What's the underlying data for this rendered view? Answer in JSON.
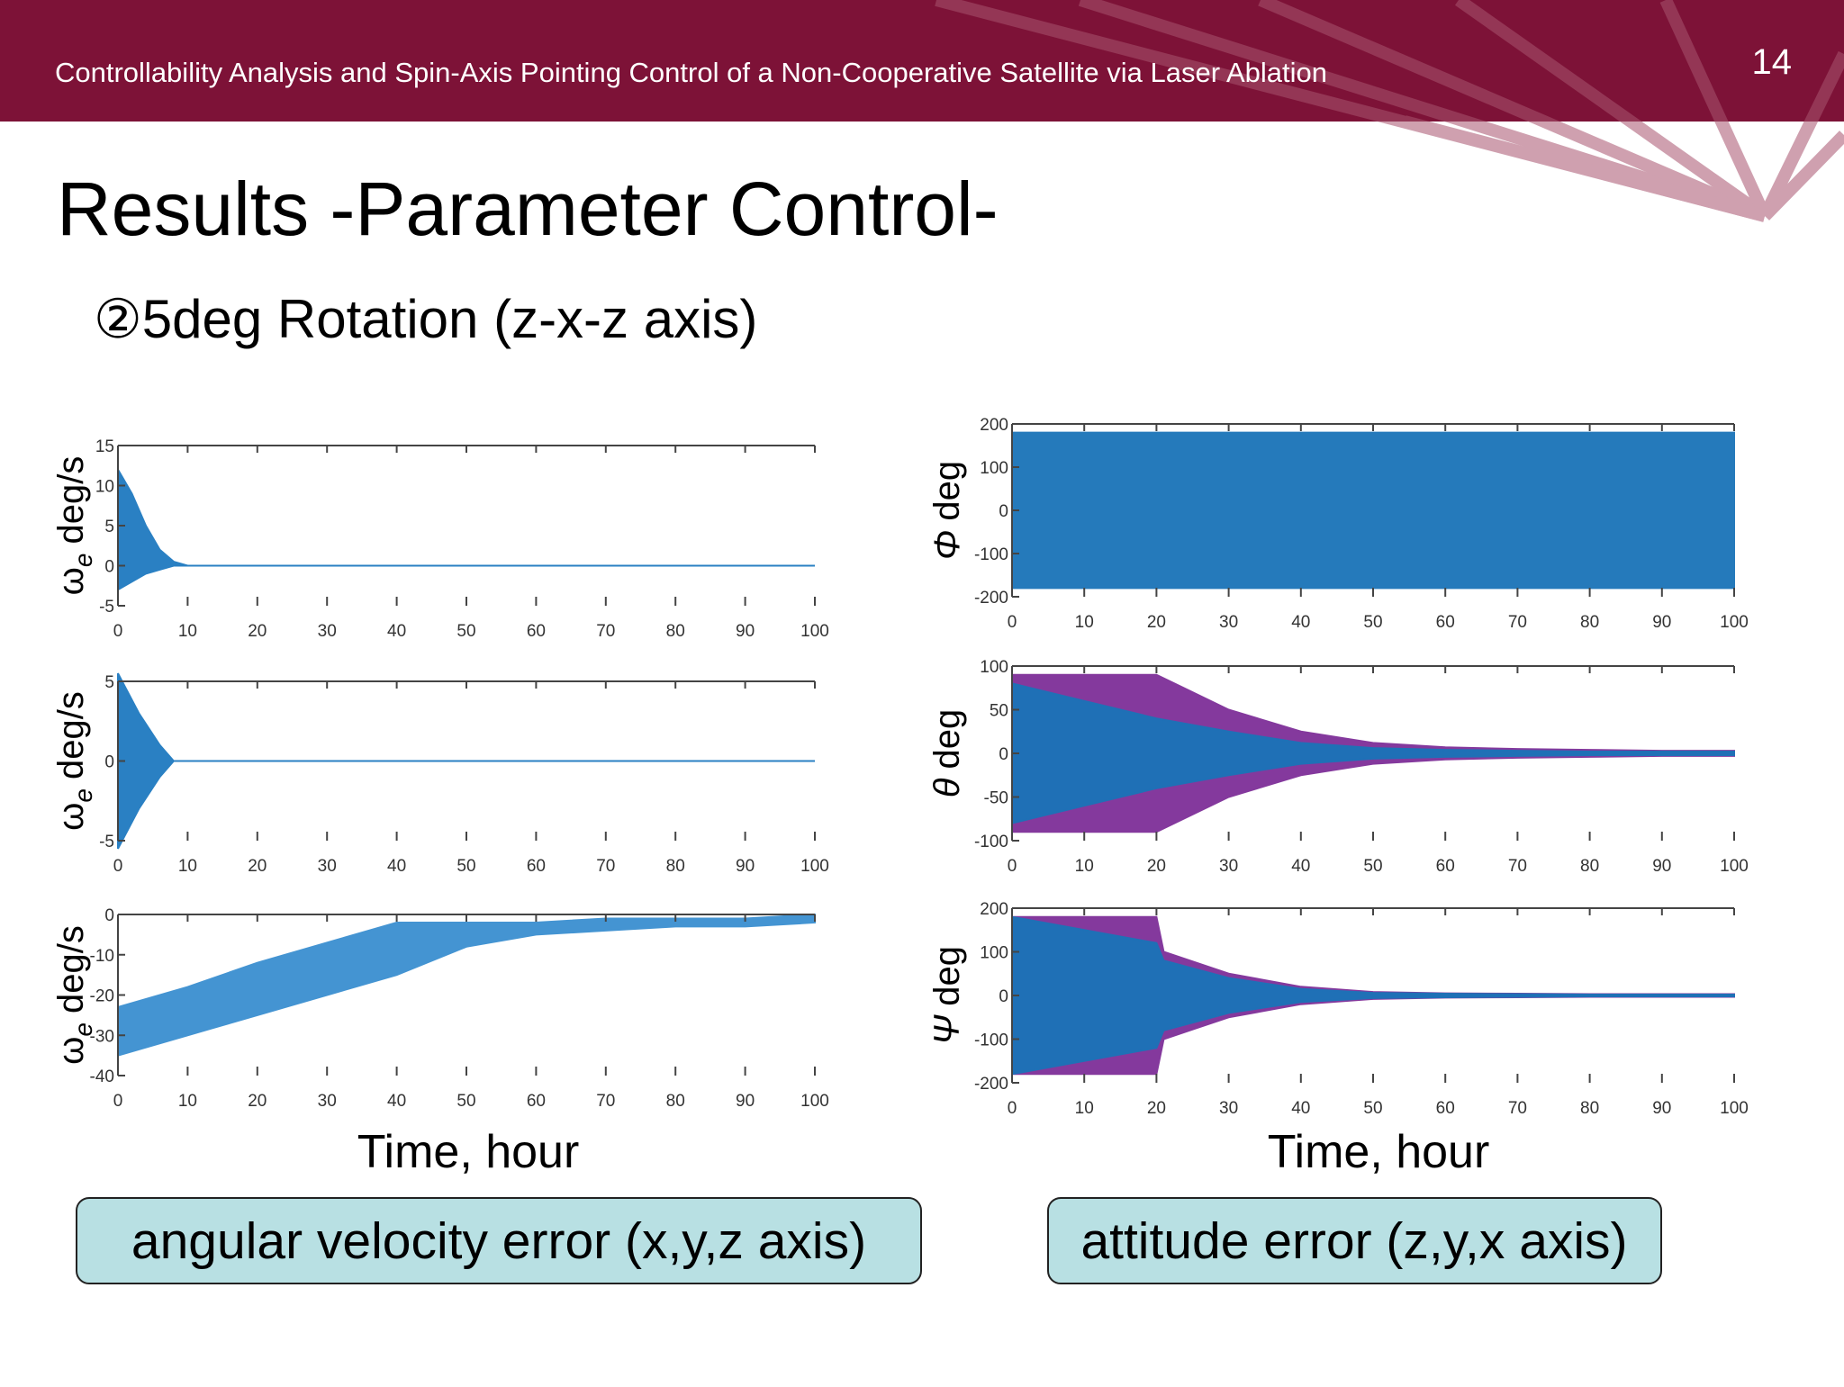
{
  "header": {
    "title": "Controllability Analysis and Spin-Axis Pointing Control of a Non-Cooperative Satellite via Laser Ablation",
    "page": "14"
  },
  "title": "Results -Parameter Control-",
  "subtitle": "②5deg Rotation (z-x-z axis)",
  "captions": {
    "left_xlabel": "Time, hour",
    "right_xlabel": "Time, hour",
    "left_box": "angular velocity error (x,y,z axis)",
    "right_box": "attitude error (z,y,x axis)"
  },
  "chart_data": [
    {
      "type": "band",
      "ylabel": {
        "symbol": "ω",
        "subscript": "e",
        "unit": "deg/s"
      },
      "x": [
        0,
        2,
        4,
        6,
        8,
        10,
        100
      ],
      "series": [
        {
          "color": "#1f7ac0",
          "upper": [
            12,
            9,
            5,
            2,
            0.5,
            0,
            0
          ],
          "lower": [
            -3,
            -2,
            -1,
            -0.5,
            0,
            0,
            0
          ]
        }
      ],
      "xlim": [
        0,
        100
      ],
      "xticks": [
        0,
        10,
        20,
        30,
        40,
        50,
        60,
        70,
        80,
        90,
        100
      ],
      "ylim": [
        -5,
        15
      ],
      "yticks": [
        -5,
        0,
        5,
        10,
        15
      ]
    },
    {
      "type": "band",
      "ylabel": {
        "symbol": "ω",
        "subscript": "e",
        "unit": "deg/s"
      },
      "x": [
        0,
        3,
        6,
        8,
        100
      ],
      "series": [
        {
          "color": "#1f7ac0",
          "upper": [
            5.5,
            3,
            1,
            0,
            0
          ],
          "lower": [
            -5.5,
            -3,
            -1,
            0,
            0
          ]
        }
      ],
      "xlim": [
        0,
        100
      ],
      "xticks": [
        0,
        10,
        20,
        30,
        40,
        50,
        60,
        70,
        80,
        90,
        100
      ],
      "ylim": [
        -5,
        5
      ],
      "yticks": [
        -5,
        0,
        5
      ]
    },
    {
      "type": "band",
      "ylabel": {
        "symbol": "ω",
        "subscript": "e",
        "unit": "deg/s"
      },
      "x": [
        0,
        10,
        20,
        30,
        40,
        50,
        60,
        70,
        80,
        90,
        100
      ],
      "series": [
        {
          "color": "#3a8fd0",
          "upper": [
            -23,
            -18,
            -12,
            -7,
            -2,
            -2,
            -2,
            -1,
            -1,
            -1,
            0
          ],
          "lower": [
            -35,
            -30,
            -25,
            -20,
            -15,
            -8,
            -5,
            -4,
            -3,
            -3,
            -2
          ]
        }
      ],
      "xlim": [
        0,
        100
      ],
      "xticks": [
        0,
        10,
        20,
        30,
        40,
        50,
        60,
        70,
        80,
        90,
        100
      ],
      "ylim": [
        -40,
        0
      ],
      "yticks": [
        -40,
        -30,
        -20,
        -10,
        0
      ]
    },
    {
      "type": "band",
      "ylabel": {
        "symbol": "Φ",
        "unit": "deg"
      },
      "x": [
        0,
        100
      ],
      "series": [
        {
          "color": "#1a73b8",
          "upper": [
            180,
            180
          ],
          "lower": [
            -180,
            -180
          ]
        }
      ],
      "xlim": [
        0,
        100
      ],
      "xticks": [
        0,
        10,
        20,
        30,
        40,
        50,
        60,
        70,
        80,
        90,
        100
      ],
      "ylim": [
        -200,
        200
      ],
      "yticks": [
        -200,
        -100,
        0,
        100,
        200
      ]
    },
    {
      "type": "band",
      "ylabel": {
        "symbol": "θ",
        "unit": "deg"
      },
      "x": [
        0,
        10,
        20,
        30,
        40,
        50,
        60,
        70,
        80,
        90,
        100
      ],
      "series": [
        {
          "color": "#7e2f98",
          "upper": [
            90,
            90,
            90,
            50,
            25,
            12,
            7,
            5,
            4,
            3,
            3
          ],
          "lower": [
            -90,
            -90,
            -90,
            -50,
            -25,
            -12,
            -7,
            -5,
            -4,
            -3,
            -3
          ]
        },
        {
          "color": "#1a73b8",
          "upper": [
            80,
            60,
            40,
            25,
            12,
            6,
            4,
            3,
            2,
            2,
            2
          ],
          "lower": [
            -80,
            -60,
            -40,
            -25,
            -12,
            -6,
            -4,
            -3,
            -2,
            -2,
            -2
          ]
        }
      ],
      "xlim": [
        0,
        100
      ],
      "xticks": [
        0,
        10,
        20,
        30,
        40,
        50,
        60,
        70,
        80,
        90,
        100
      ],
      "ylim": [
        -100,
        100
      ],
      "yticks": [
        -100,
        -50,
        0,
        50,
        100
      ]
    },
    {
      "type": "band",
      "ylabel": {
        "symbol": "Ψ",
        "unit": "deg"
      },
      "x": [
        0,
        20,
        21,
        30,
        40,
        50,
        60,
        70,
        80,
        90,
        100
      ],
      "series": [
        {
          "color": "#7e2f98",
          "upper": [
            180,
            180,
            100,
            50,
            20,
            8,
            5,
            4,
            3,
            3,
            3
          ],
          "lower": [
            -180,
            -180,
            -100,
            -50,
            -20,
            -8,
            -5,
            -4,
            -3,
            -3,
            -3
          ]
        },
        {
          "color": "#1a73b8",
          "upper": [
            180,
            120,
            80,
            40,
            15,
            6,
            4,
            3,
            2,
            2,
            2
          ],
          "lower": [
            -180,
            -120,
            -80,
            -40,
            -15,
            -6,
            -4,
            -3,
            -2,
            -2,
            -2
          ]
        }
      ],
      "xlim": [
        0,
        100
      ],
      "xticks": [
        0,
        10,
        20,
        30,
        40,
        50,
        60,
        70,
        80,
        90,
        100
      ],
      "ylim": [
        -200,
        200
      ],
      "yticks": [
        -200,
        -100,
        0,
        100,
        200
      ]
    }
  ]
}
